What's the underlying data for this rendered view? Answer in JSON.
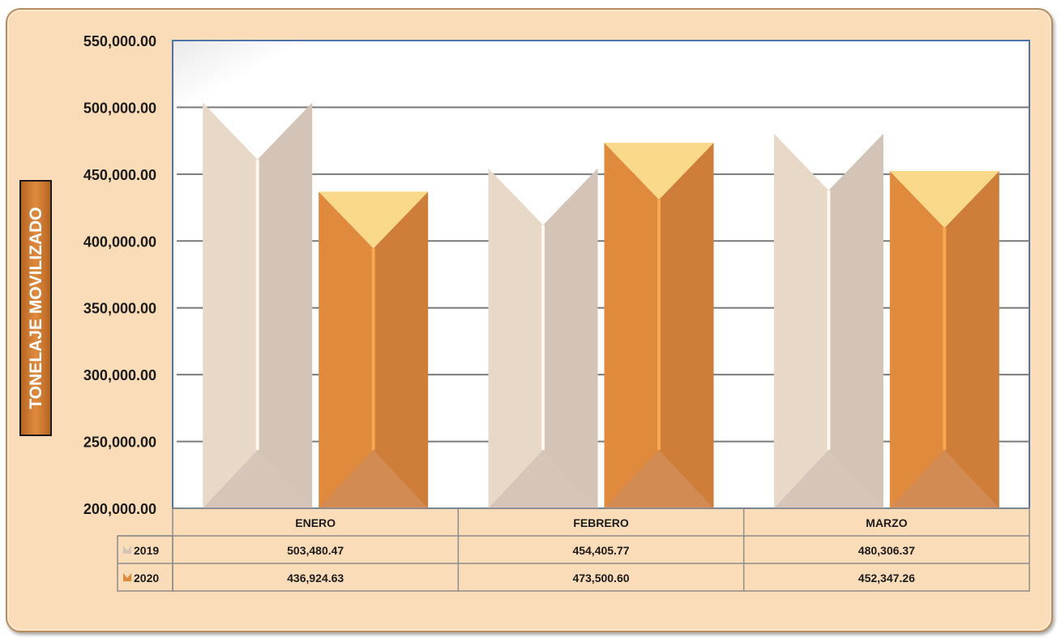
{
  "chart_data": {
    "type": "bar",
    "title": "",
    "ylabel": "TONELAJE MOVILIZADO",
    "xlabel": "",
    "ylim": [
      200000,
      550000
    ],
    "y_ticks": [
      "550,000.00",
      "500,000.00",
      "450,000.00",
      "400,000.00",
      "350,000.00",
      "300,000.00",
      "250,000.00",
      "200,000.00"
    ],
    "categories": [
      "ENERO",
      "FEBRERO",
      "MARZO"
    ],
    "series": [
      {
        "name": "2019",
        "values": [
          503480.47,
          454405.77,
          480306.37
        ],
        "labels": [
          "503,480.47",
          "454,405.77",
          "480,306.37"
        ],
        "color_left": "#e8d8c8",
        "color_right": "#d3c4b7",
        "color_top": "#f4ece3"
      },
      {
        "name": "2020",
        "values": [
          436924.63,
          473500.6,
          452347.26
        ],
        "labels": [
          "436,924.63",
          "473,500.60",
          "452,347.26"
        ],
        "color_left": "#e08a3e",
        "color_right": "#cf7e3a",
        "color_top": "#fbd98a"
      }
    ],
    "grid": true,
    "legend": "data-table",
    "background": "#fbdcb8"
  }
}
